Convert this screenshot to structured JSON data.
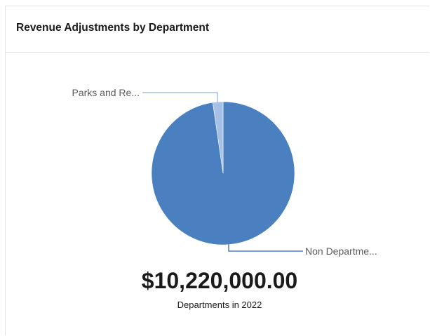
{
  "card": {
    "title": "Revenue Adjustments by Department"
  },
  "summary": {
    "value": "$10,220,000.00",
    "caption": "Departments in 2022"
  },
  "colors": {
    "non_departmental": "#4a7fc0",
    "parks": "#a6c0e6"
  },
  "chart_data": {
    "type": "pie",
    "title": "",
    "slices": [
      {
        "label": "Non Departme...",
        "share": 0.977,
        "color": "#4a7fc0"
      },
      {
        "label": "Parks and Re...",
        "share": 0.023,
        "color": "#a6c0e6"
      }
    ]
  }
}
